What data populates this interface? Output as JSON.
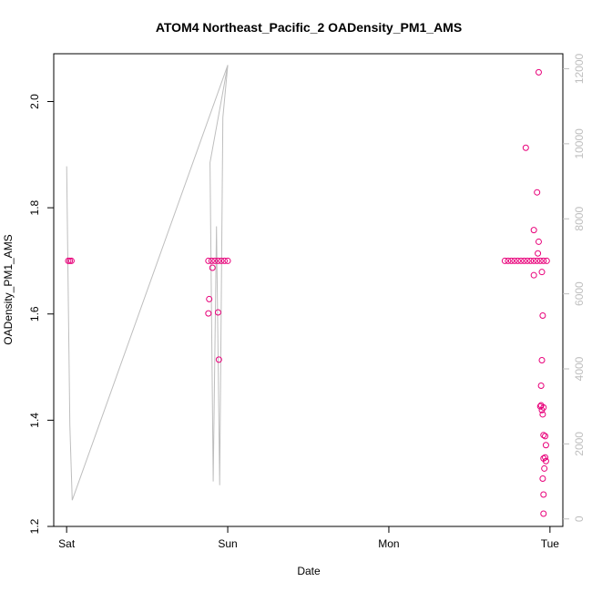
{
  "chart_data": {
    "type": "line",
    "title": "ATOM4 Northeast_Pacific_2 OADensity_PM1_AMS",
    "xlabel": "Date",
    "ylabel": "OADensity_PM1_AMS",
    "x_ticks": [
      "Sat",
      "Sun",
      "Mon",
      "Tue"
    ],
    "y_ticks": [
      "1.2",
      "1.4",
      "1.6",
      "1.8",
      "2.0"
    ],
    "y2_ticks": [
      "0",
      "2000",
      "4000",
      "6000",
      "8000",
      "10000",
      "12000"
    ],
    "xlim_days": [
      -0.08,
      3.08
    ],
    "ylim": [
      1.2,
      2.09
    ],
    "y2lim": [
      -200,
      12400
    ],
    "grid": false,
    "colors": {
      "points": "#e8007a",
      "altitude_line": "#bebebe",
      "axes": "#000000"
    },
    "series": [
      {
        "axis": "right",
        "style": "line",
        "points": [
          [
            0.0,
            9400
          ],
          [
            0.02,
            2500
          ],
          [
            0.035,
            500
          ],
          [
            1.0,
            12100
          ],
          [
            0.89,
            9500
          ],
          [
            0.91,
            1000
          ],
          [
            0.93,
            7800
          ],
          [
            0.95,
            900
          ],
          [
            0.97,
            10700
          ],
          [
            1.0,
            12100
          ]
        ]
      },
      {
        "axis": "left",
        "style": "points",
        "points": [
          [
            0.01,
            1.7
          ],
          [
            0.02,
            1.7
          ],
          [
            0.03,
            1.7
          ],
          [
            0.88,
            1.7
          ],
          [
            0.9,
            1.7
          ],
          [
            0.92,
            1.7
          ],
          [
            0.94,
            1.7
          ],
          [
            0.96,
            1.7
          ],
          [
            0.98,
            1.7
          ],
          [
            1.0,
            1.7
          ],
          [
            0.885,
            1.628
          ],
          [
            0.88,
            1.601
          ],
          [
            0.905,
            1.687
          ],
          [
            0.94,
            1.603
          ],
          [
            0.945,
            1.514
          ],
          [
            2.72,
            1.7
          ],
          [
            2.74,
            1.7
          ],
          [
            2.76,
            1.7
          ],
          [
            2.78,
            1.7
          ],
          [
            2.8,
            1.7
          ],
          [
            2.82,
            1.7
          ],
          [
            2.84,
            1.7
          ],
          [
            2.86,
            1.7
          ],
          [
            2.88,
            1.7
          ],
          [
            2.9,
            1.7
          ],
          [
            2.92,
            1.7
          ],
          [
            2.94,
            1.7
          ],
          [
            2.96,
            1.7
          ],
          [
            2.98,
            1.7
          ],
          [
            2.85,
            1.913
          ],
          [
            2.9,
            1.758
          ],
          [
            2.93,
            2.055
          ],
          [
            2.92,
            1.829
          ],
          [
            2.93,
            1.736
          ],
          [
            2.925,
            1.714
          ],
          [
            2.9,
            1.673
          ],
          [
            2.95,
            1.679
          ],
          [
            2.955,
            1.597
          ],
          [
            2.95,
            1.513
          ],
          [
            2.945,
            1.465
          ],
          [
            2.94,
            1.426
          ],
          [
            2.945,
            1.428
          ],
          [
            2.95,
            1.419
          ],
          [
            2.96,
            1.424
          ],
          [
            2.955,
            1.411
          ],
          [
            2.96,
            1.372
          ],
          [
            2.97,
            1.37
          ],
          [
            2.975,
            1.353
          ],
          [
            2.96,
            1.328
          ],
          [
            2.97,
            1.33
          ],
          [
            2.975,
            1.323
          ],
          [
            2.965,
            1.309
          ],
          [
            2.955,
            1.29
          ],
          [
            2.96,
            1.26
          ],
          [
            2.96,
            1.224
          ]
        ]
      }
    ]
  }
}
